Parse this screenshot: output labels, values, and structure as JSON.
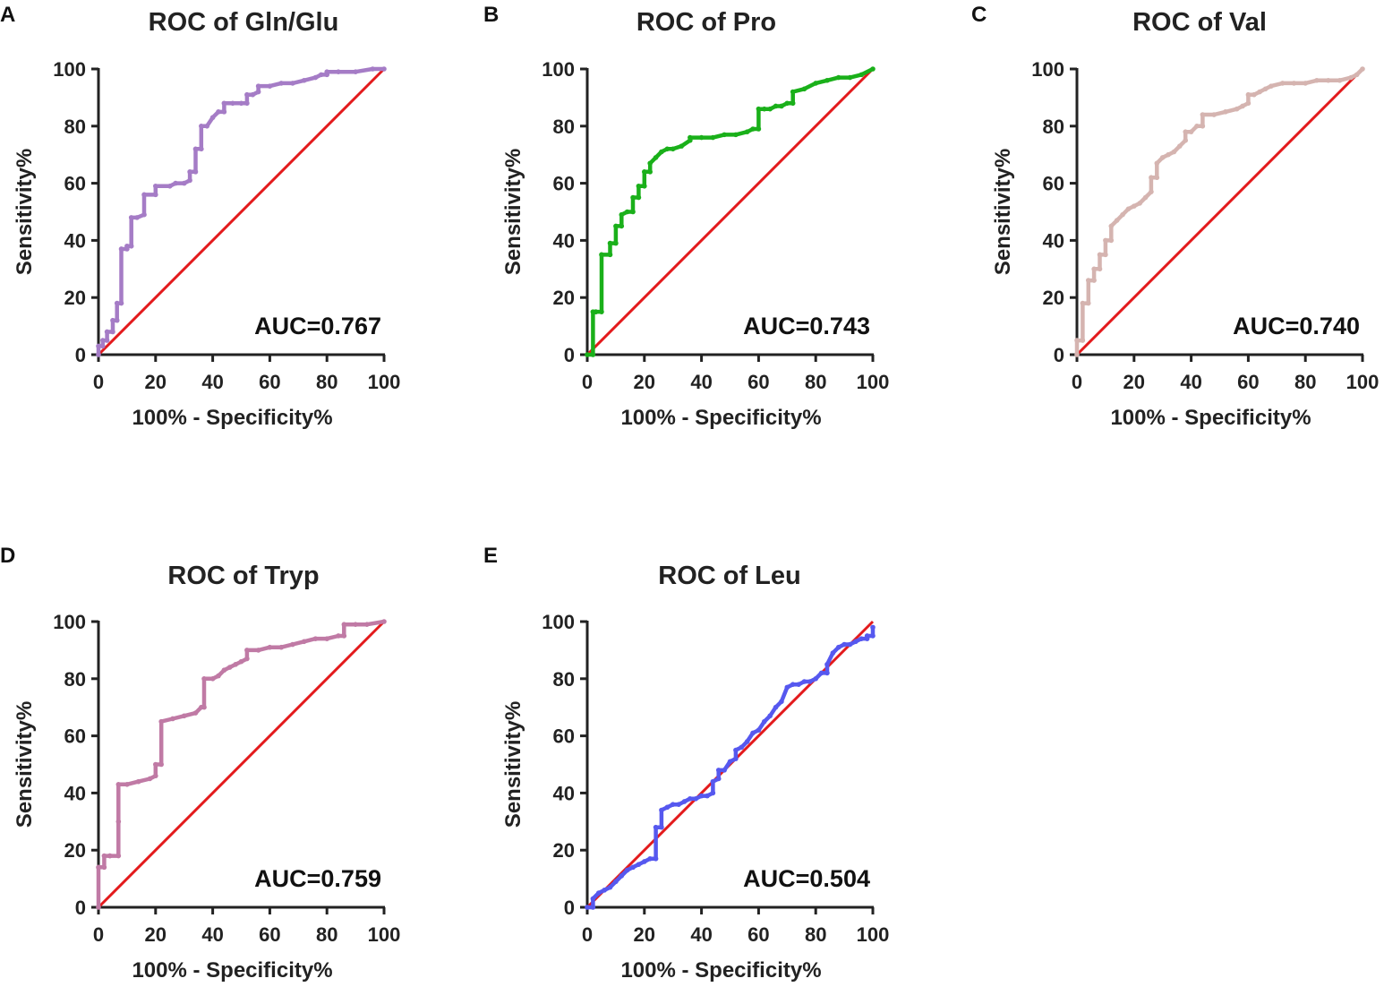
{
  "chart_data": [
    {
      "panel": "A",
      "type": "line",
      "title": "ROC of  Gln/Glu",
      "xlabel": "100% - Specificity%",
      "ylabel": "Sensitivity%",
      "xlim": [
        0,
        100
      ],
      "ylim": [
        0,
        100
      ],
      "xticks": [
        "0",
        "20",
        "40",
        "60",
        "80",
        "100"
      ],
      "yticks": [
        "0",
        "20",
        "40",
        "60",
        "80",
        "100"
      ],
      "auc_label": "AUC=0.767",
      "color": "#a57cc6",
      "reference_color": "#e31a1c",
      "series": [
        {
          "name": "ROC",
          "x": [
            0,
            0,
            1.5,
            1.5,
            3,
            3,
            5,
            5,
            6.5,
            6.5,
            8,
            8,
            10,
            10,
            11.5,
            11.5,
            13.5,
            16,
            16,
            20,
            20,
            25,
            27,
            30,
            32,
            32,
            34,
            34,
            36,
            36,
            38,
            40,
            42,
            44,
            44,
            47,
            50,
            52,
            52,
            54,
            56,
            56,
            60,
            64,
            68,
            72,
            76,
            78,
            80,
            80,
            84,
            90,
            96,
            100
          ],
          "y": [
            0,
            3,
            3,
            5,
            5,
            8,
            8,
            12,
            12,
            18,
            18,
            37,
            37,
            38,
            38,
            48,
            48,
            49,
            56,
            56,
            59,
            59,
            60,
            60,
            61,
            64,
            64,
            72,
            72,
            80,
            80,
            83,
            85,
            85,
            88,
            88,
            88,
            88,
            91,
            91,
            92,
            94,
            94,
            95,
            95,
            96,
            97,
            98,
            98,
            99,
            99,
            99,
            100,
            100
          ]
        }
      ]
    },
    {
      "panel": "B",
      "type": "line",
      "title": "ROC of Pro",
      "xlabel": "100% - Specificity%",
      "ylabel": "Sensitivity%",
      "xlim": [
        0,
        100
      ],
      "ylim": [
        0,
        100
      ],
      "xticks": [
        "0",
        "20",
        "40",
        "60",
        "80",
        "100"
      ],
      "yticks": [
        "0",
        "20",
        "40",
        "60",
        "80",
        "100"
      ],
      "auc_label": "AUC=0.743",
      "color": "#1ab01a",
      "reference_color": "#e31a1c",
      "series": [
        {
          "name": "ROC",
          "x": [
            0,
            2,
            2,
            3,
            3,
            5,
            5,
            8,
            8,
            10,
            10,
            12,
            12,
            14,
            16,
            16,
            18,
            18,
            20,
            20,
            22,
            22,
            24,
            26,
            28,
            30,
            33,
            36,
            36,
            40,
            44,
            48,
            52,
            56,
            58,
            60,
            60,
            62,
            64,
            66,
            68,
            70,
            72,
            72,
            76,
            80,
            84,
            88,
            92,
            96,
            100
          ],
          "y": [
            0,
            0,
            15,
            15,
            15,
            15,
            35,
            35,
            39,
            39,
            45,
            45,
            49,
            50,
            50,
            55,
            55,
            59,
            59,
            64,
            64,
            67,
            69,
            71,
            72,
            72,
            73,
            75,
            76,
            76,
            76,
            77,
            77,
            78,
            79,
            79,
            86,
            86,
            86,
            87,
            87,
            88,
            88,
            92,
            93,
            95,
            96,
            97,
            97,
            98,
            100
          ]
        }
      ]
    },
    {
      "panel": "C",
      "type": "line",
      "title": "ROC of Val",
      "xlabel": "100% - Specificity%",
      "ylabel": "Sensitivity%",
      "xlim": [
        0,
        100
      ],
      "ylim": [
        0,
        100
      ],
      "xticks": [
        "0",
        "20",
        "40",
        "60",
        "80",
        "100"
      ],
      "yticks": [
        "0",
        "20",
        "40",
        "60",
        "80",
        "100"
      ],
      "auc_label": "AUC=0.740",
      "color": "#d5b4b0",
      "reference_color": "#e31a1c",
      "series": [
        {
          "name": "ROC",
          "x": [
            0,
            0,
            2,
            2,
            4,
            4,
            6,
            6,
            8,
            8,
            10,
            10,
            12,
            12,
            14,
            16,
            18,
            20,
            22,
            24,
            26,
            26,
            28,
            28,
            30,
            32,
            34,
            36,
            38,
            38,
            40,
            42,
            44,
            44,
            48,
            52,
            56,
            58,
            60,
            60,
            62,
            64,
            66,
            68,
            72,
            76,
            80,
            84,
            88,
            92,
            96,
            98,
            100
          ],
          "y": [
            0,
            5,
            5,
            18,
            18,
            26,
            26,
            30,
            30,
            35,
            35,
            40,
            40,
            45,
            47,
            49,
            51,
            52,
            53,
            55,
            57,
            62,
            62,
            67,
            69,
            70,
            71,
            73,
            75,
            78,
            78,
            80,
            80,
            84,
            84,
            85,
            86,
            87,
            88,
            91,
            91,
            92,
            93,
            94,
            95,
            95,
            95,
            96,
            96,
            96,
            97,
            98,
            100
          ]
        }
      ]
    },
    {
      "panel": "D",
      "type": "line",
      "title": "ROC of Tryp",
      "xlabel": "100% - Specificity%",
      "ylabel": "Sensitivity%",
      "xlim": [
        0,
        100
      ],
      "ylim": [
        0,
        100
      ],
      "xticks": [
        "0",
        "20",
        "40",
        "60",
        "80",
        "100"
      ],
      "yticks": [
        "0",
        "20",
        "40",
        "60",
        "80",
        "100"
      ],
      "auc_label": "AUC=0.759",
      "color": "#c07aa5",
      "reference_color": "#e31a1c",
      "series": [
        {
          "name": "ROC",
          "x": [
            0,
            0,
            2,
            2,
            4,
            4,
            7,
            7,
            7,
            10,
            14,
            18,
            20,
            20,
            22,
            22,
            26,
            30,
            34,
            36,
            37,
            37,
            40,
            42,
            44,
            46,
            48,
            50,
            52,
            52,
            56,
            60,
            64,
            68,
            72,
            76,
            80,
            84,
            86,
            86,
            90,
            94,
            100
          ],
          "y": [
            0,
            14,
            14,
            18,
            18,
            18,
            18,
            30,
            43,
            43,
            44,
            45,
            46,
            50,
            50,
            65,
            66,
            67,
            68,
            70,
            70,
            80,
            80,
            81,
            83,
            84,
            85,
            86,
            87,
            90,
            90,
            91,
            91,
            92,
            93,
            94,
            94,
            95,
            95,
            99,
            99,
            99,
            100
          ]
        }
      ]
    },
    {
      "panel": "E",
      "type": "line",
      "title": "ROC of Leu",
      "xlabel": "100% - Specificity%",
      "ylabel": "Sensitivity%",
      "xlim": [
        0,
        100
      ],
      "ylim": [
        0,
        100
      ],
      "xticks": [
        "0",
        "20",
        "40",
        "60",
        "80",
        "100"
      ],
      "yticks": [
        "0",
        "20",
        "40",
        "60",
        "80",
        "100"
      ],
      "auc_label": "AUC=0.504",
      "color": "#5658ef",
      "reference_color": "#e31a1c",
      "series": [
        {
          "name": "ROC",
          "x": [
            0,
            2,
            2,
            4,
            6,
            8,
            10,
            12,
            14,
            16,
            18,
            20,
            22,
            24,
            24,
            26,
            26,
            28,
            30,
            32,
            34,
            36,
            38,
            40,
            42,
            44,
            44,
            46,
            46,
            48,
            50,
            52,
            52,
            54,
            56,
            58,
            60,
            62,
            64,
            66,
            68,
            70,
            72,
            74,
            76,
            78,
            80,
            82,
            84,
            84,
            86,
            88,
            90,
            92,
            94,
            96,
            98,
            98,
            100,
            100
          ],
          "y": [
            0,
            0,
            3,
            5,
            6,
            7,
            9,
            11,
            13,
            14,
            15,
            16,
            17,
            17,
            28,
            28,
            34,
            35,
            36,
            36,
            37,
            38,
            38,
            39,
            39,
            40,
            44,
            45,
            48,
            48,
            51,
            52,
            55,
            56,
            58,
            61,
            62,
            65,
            67,
            70,
            72,
            77,
            78,
            78,
            79,
            79,
            80,
            82,
            82,
            85,
            89,
            91,
            92,
            92,
            93,
            94,
            94,
            95,
            95,
            98
          ]
        }
      ]
    }
  ]
}
